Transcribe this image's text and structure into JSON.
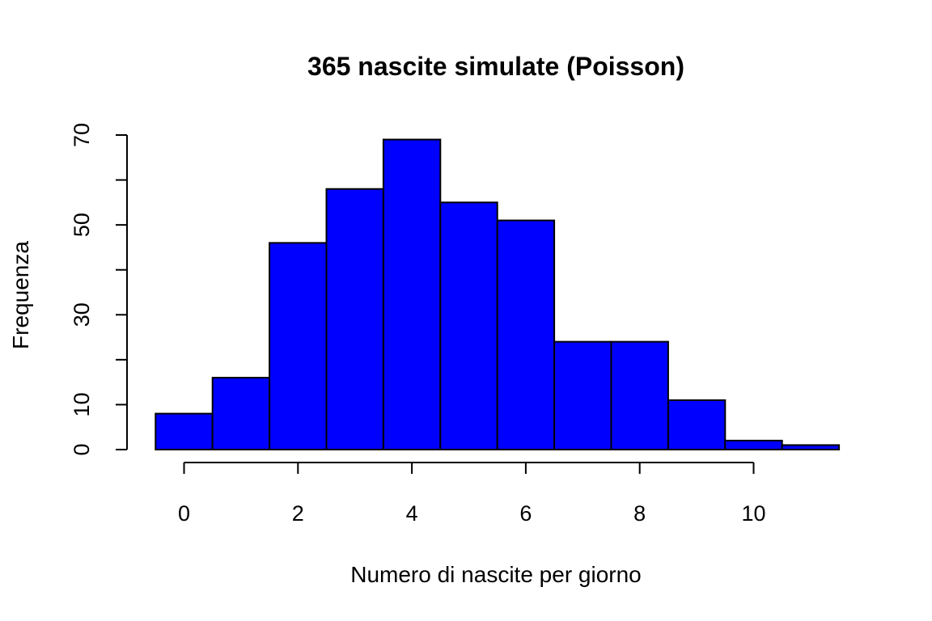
{
  "chart_data": {
    "type": "bar",
    "title": "365 nascite simulate (Poisson)",
    "xlabel": "Numero di nascite per giorno",
    "ylabel": "Frequenza",
    "bins": [
      {
        "x": 0,
        "value": 8
      },
      {
        "x": 1,
        "value": 16
      },
      {
        "x": 2,
        "value": 46
      },
      {
        "x": 3,
        "value": 58
      },
      {
        "x": 4,
        "value": 69
      },
      {
        "x": 5,
        "value": 55
      },
      {
        "x": 6,
        "value": 51
      },
      {
        "x": 7,
        "value": 24
      },
      {
        "x": 8,
        "value": 24
      },
      {
        "x": 9,
        "value": 11
      },
      {
        "x": 10,
        "value": 2
      },
      {
        "x": 11,
        "value": 1
      }
    ],
    "bin_width": 1,
    "xlim": [
      -0.5,
      11.5
    ],
    "ylim": [
      0,
      70
    ],
    "x_ticks": [
      0,
      2,
      4,
      6,
      8,
      10
    ],
    "y_ticks": [
      0,
      10,
      20,
      30,
      40,
      50,
      60,
      70
    ],
    "y_tick_labels": [
      "0",
      "10",
      "",
      "30",
      "",
      "50",
      "",
      "70"
    ],
    "grid": false,
    "bar_color": "#0000ff",
    "edge_color": "#000000"
  }
}
